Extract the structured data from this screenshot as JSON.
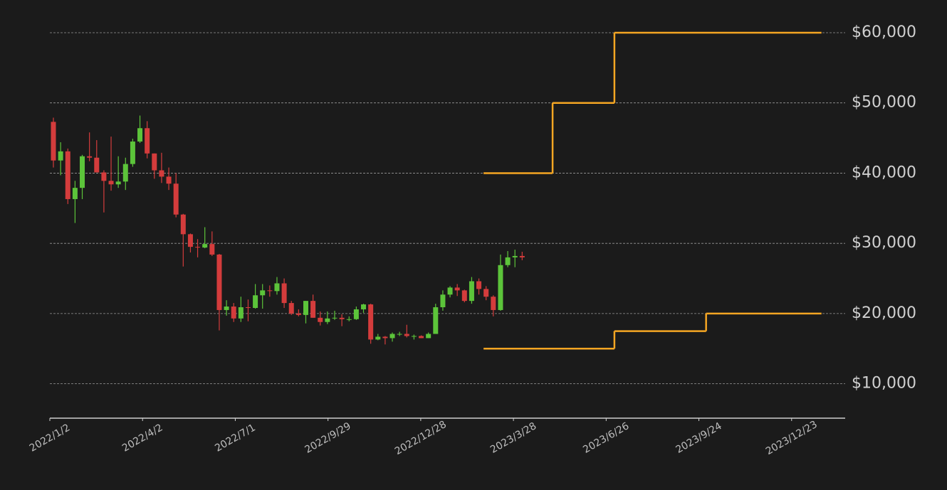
{
  "chart_data": {
    "type": "candlestick",
    "up_color": "#5cc43a",
    "down_color": "#d43c3c",
    "grid": true,
    "xlim": [
      "2022/1/2",
      "2024/2/13"
    ],
    "xticks": [
      "2022/1/2",
      "2022/4/2",
      "2022/7/1",
      "2022/9/29",
      "2022/12/28",
      "2023/3/28",
      "2023/6/26",
      "2023/9/24",
      "2023/12/23"
    ],
    "ylim": [
      5100,
      62500
    ],
    "yticks": [
      {
        "value": 10000,
        "label": "$10,000"
      },
      {
        "value": 20000,
        "label": "$20,000"
      },
      {
        "value": 30000,
        "label": "$30,000"
      },
      {
        "value": 40000,
        "label": "$40,000"
      },
      {
        "value": 50000,
        "label": "$50,000"
      },
      {
        "value": 60000,
        "label": "$60,000"
      }
    ],
    "x": [
      "2022/1/2",
      "2022/1/9",
      "2022/1/16",
      "2022/1/23",
      "2022/1/30",
      "2022/2/6",
      "2022/2/13",
      "2022/2/20",
      "2022/2/27",
      "2022/3/6",
      "2022/3/13",
      "2022/3/20",
      "2022/3/27",
      "2022/4/3",
      "2022/4/10",
      "2022/4/17",
      "2022/4/24",
      "2022/5/1",
      "2022/5/8",
      "2022/5/15",
      "2022/5/22",
      "2022/5/29",
      "2022/6/5",
      "2022/6/12",
      "2022/6/19",
      "2022/6/26",
      "2022/7/3",
      "2022/7/10",
      "2022/7/17",
      "2022/7/24",
      "2022/7/31",
      "2022/8/7",
      "2022/8/14",
      "2022/8/21",
      "2022/8/28",
      "2022/9/4",
      "2022/9/11",
      "2022/9/18",
      "2022/9/25",
      "2022/10/2",
      "2022/10/9",
      "2022/10/16",
      "2022/10/23",
      "2022/10/30",
      "2022/11/6",
      "2022/11/13",
      "2022/11/20",
      "2022/11/27",
      "2022/12/4",
      "2022/12/11",
      "2022/12/18",
      "2022/12/25",
      "2023/1/1",
      "2023/1/8",
      "2023/1/15",
      "2023/1/22",
      "2023/1/29",
      "2023/2/5",
      "2023/2/12",
      "2023/2/19",
      "2023/2/26",
      "2023/3/5",
      "2023/3/12",
      "2023/3/19",
      "2023/3/26",
      "2023/4/2"
    ],
    "open": [
      47300,
      41800,
      43100,
      36300,
      37900,
      42400,
      42200,
      40100,
      38900,
      38400,
      38800,
      41300,
      44500,
      46400,
      42800,
      40400,
      39500,
      38500,
      34100,
      31300,
      29500,
      29400,
      29900,
      28400,
      20500,
      21000,
      19300,
      20900,
      20800,
      22600,
      23300,
      23200,
      24300,
      21500,
      20000,
      19800,
      21800,
      19400,
      18800,
      19300,
      19400,
      19200,
      19200,
      20600,
      21300,
      16300,
      16700,
      16500,
      17100,
      17100,
      16800,
      16800,
      16500,
      17100,
      20900,
      22700,
      23700,
      23300,
      21800,
      24600,
      23500,
      22400,
      20500,
      26900,
      28000,
      28200
    ],
    "high": [
      47900,
      44400,
      43500,
      38900,
      42600,
      45800,
      44700,
      40400,
      45200,
      42400,
      42200,
      44900,
      48200,
      47400,
      42800,
      42900,
      40800,
      40000,
      34200,
      31400,
      30600,
      32300,
      31700,
      28500,
      21900,
      21500,
      22400,
      22000,
      24200,
      24200,
      24000,
      25200,
      25000,
      21800,
      20600,
      21800,
      22700,
      20300,
      20300,
      20400,
      19900,
      19600,
      21000,
      21400,
      21400,
      17100,
      16800,
      17300,
      17400,
      18400,
      17000,
      16900,
      17300,
      21400,
      23300,
      23900,
      24200,
      23400,
      25200,
      25000,
      23900,
      22600,
      28400,
      28900,
      29100,
      28800
    ],
    "low": [
      40800,
      39700,
      35600,
      32900,
      36300,
      41700,
      40100,
      34400,
      37500,
      37900,
      37600,
      40900,
      44300,
      42100,
      39200,
      38600,
      37600,
      33700,
      26700,
      28700,
      28000,
      29300,
      28200,
      17600,
      19700,
      18800,
      18800,
      18900,
      20700,
      20700,
      22400,
      22700,
      20800,
      19800,
      19600,
      18600,
      19400,
      18300,
      18500,
      19100,
      18200,
      18900,
      19100,
      20100,
      15700,
      16200,
      15600,
      16000,
      16800,
      16600,
      16300,
      16500,
      16500,
      17100,
      20400,
      22300,
      22500,
      21600,
      21400,
      22700,
      21900,
      19600,
      20400,
      26600,
      26600,
      27600
    ],
    "close": [
      41800,
      43100,
      36300,
      37900,
      42400,
      42200,
      40100,
      38900,
      38400,
      38800,
      41300,
      44500,
      46400,
      42800,
      40400,
      39500,
      38500,
      34100,
      31300,
      29500,
      29400,
      29900,
      28400,
      20500,
      21000,
      19300,
      20900,
      20800,
      22600,
      23300,
      23200,
      24300,
      21500,
      20000,
      19800,
      21800,
      19400,
      18800,
      19300,
      19400,
      19200,
      19200,
      20600,
      21300,
      16300,
      16700,
      16500,
      17100,
      17100,
      16800,
      16800,
      16500,
      17100,
      20900,
      22700,
      23700,
      23300,
      21800,
      24600,
      23500,
      22400,
      20500,
      26900,
      28000,
      28200,
      28000
    ],
    "series": [
      {
        "type": "step",
        "color": "#f5a623",
        "x": [
          "2023/2/27",
          "2023/5/5",
          "2023/7/4",
          "2024/1/21"
        ],
        "values": [
          40000,
          50000,
          60000,
          60000
        ]
      },
      {
        "type": "step",
        "color": "#f5a623",
        "x": [
          "2023/2/27",
          "2023/7/4",
          "2023/10/1",
          "2024/1/21"
        ],
        "values": [
          15000,
          17500,
          20000,
          20000
        ]
      }
    ]
  }
}
